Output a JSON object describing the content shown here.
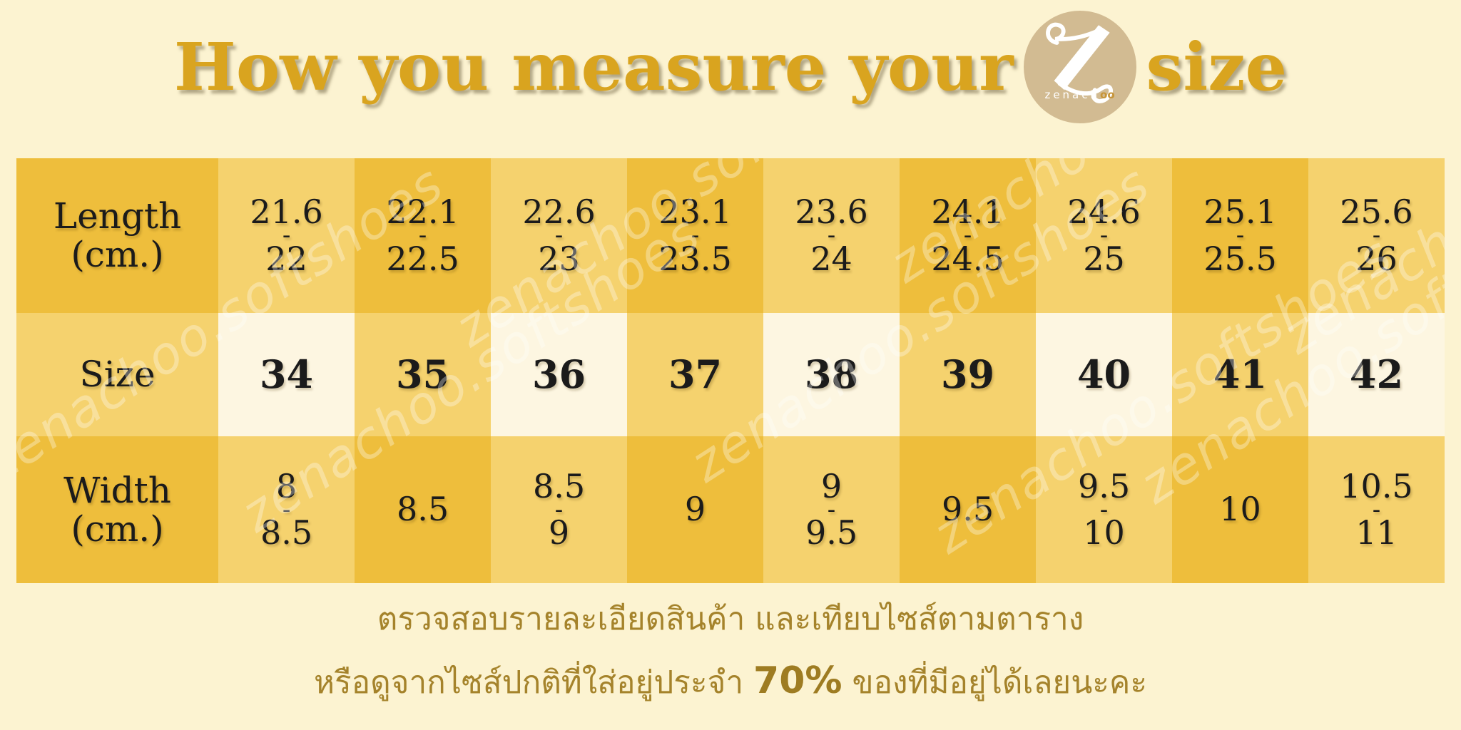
{
  "title": {
    "prefix": "How you measure your",
    "suffix": "size"
  },
  "logo": {
    "brand": "zenach",
    "brand_suffix": "oo"
  },
  "table": {
    "rows": [
      {
        "header_lines": [
          "Length",
          "(cm.)"
        ],
        "cells": [
          [
            "21.6",
            "-",
            "22"
          ],
          [
            "22.1",
            "-",
            "22.5"
          ],
          [
            "22.6",
            "-",
            "23"
          ],
          [
            "23.1",
            "-",
            "23.5"
          ],
          [
            "23.6",
            "-",
            "24"
          ],
          [
            "24.1",
            "-",
            "24.5"
          ],
          [
            "24.6",
            "-",
            "25"
          ],
          [
            "25.1",
            "-",
            "25.5"
          ],
          [
            "25.6",
            "-",
            "26"
          ]
        ]
      },
      {
        "header_lines": [
          "Size"
        ],
        "cells": [
          [
            "34"
          ],
          [
            "35"
          ],
          [
            "36"
          ],
          [
            "37"
          ],
          [
            "38"
          ],
          [
            "39"
          ],
          [
            "40"
          ],
          [
            "41"
          ],
          [
            "42"
          ]
        ]
      },
      {
        "header_lines": [
          "Width",
          "(cm.)"
        ],
        "cells": [
          [
            "8",
            "-",
            "8.5"
          ],
          [
            "8.5"
          ],
          [
            "8.5",
            "-",
            "9"
          ],
          [
            "9"
          ],
          [
            "9",
            "-",
            "9.5"
          ],
          [
            "9.5"
          ],
          [
            "9.5",
            "-",
            "10"
          ],
          [
            "10"
          ],
          [
            "10.5",
            "-",
            "11"
          ]
        ]
      }
    ]
  },
  "watermark": {
    "text": "zenachoo.softshoes"
  },
  "footer": {
    "line1": "ตรวจสอบรายละเอียดสินค้า และเทียบไซส์ตามตาราง",
    "line2_before": "หรือดูจากไซส์ปกติที่ใส่อยู่ประจำ",
    "line2_bold": "70%",
    "line2_after": "ของที่มีอยู่ได้เลยนะคะ"
  },
  "colors": {
    "background": "#FCF3D1",
    "cell_dark_gold": "#EEBE3C",
    "cell_light_gold": "#F5D26E",
    "cell_cream": "#FDF6E1",
    "title_gold": "#D9A41F",
    "footer_text": "#A5832B",
    "logo_circle": "#D2BB92",
    "logo_accent": "#C79436",
    "table_text": "#1B1B1B",
    "watermark_white": "rgba(255,255,255,0.32)"
  },
  "chart_data": {
    "type": "table",
    "title": "How you measure your zenachoo size",
    "row_headers": [
      "Length (cm.)",
      "Size",
      "Width (cm.)"
    ],
    "columns": [
      {
        "length_cm": "21.6-22",
        "size": "34",
        "width_cm": "8-8.5"
      },
      {
        "length_cm": "22.1-22.5",
        "size": "35",
        "width_cm": "8.5"
      },
      {
        "length_cm": "22.6-23",
        "size": "36",
        "width_cm": "8.5-9"
      },
      {
        "length_cm": "23.1-23.5",
        "size": "37",
        "width_cm": "9"
      },
      {
        "length_cm": "23.6-24",
        "size": "38",
        "width_cm": "9-9.5"
      },
      {
        "length_cm": "24.1-24.5",
        "size": "39",
        "width_cm": "9.5"
      },
      {
        "length_cm": "24.6-25",
        "size": "40",
        "width_cm": "9.5-10"
      },
      {
        "length_cm": "25.1-25.5",
        "size": "41",
        "width_cm": "10"
      },
      {
        "length_cm": "25.6-26",
        "size": "42",
        "width_cm": "10.5-11"
      }
    ]
  }
}
